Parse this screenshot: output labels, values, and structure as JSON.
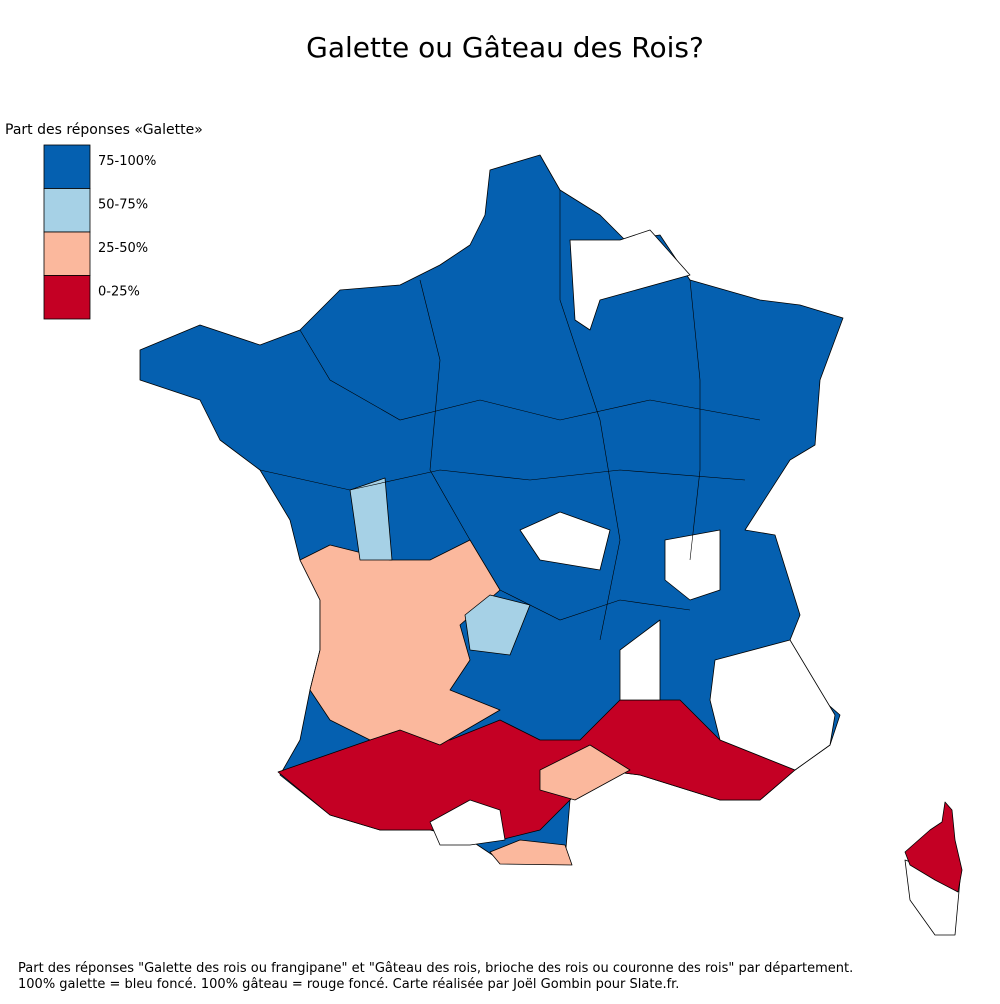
{
  "title": "Galette ou Gâteau des Rois?",
  "legend": {
    "title": "Part des réponses «Galette»",
    "items": [
      {
        "label": "75-100%",
        "color": "#0560b0"
      },
      {
        "label": "50-75%",
        "color": "#a6d1e6"
      },
      {
        "label": "25-50%",
        "color": "#fbb89d"
      },
      {
        "label": "0-25%",
        "color": "#c40024"
      }
    ]
  },
  "footer": [
    "Part des réponses \"Galette des rois ou frangipane\" et \"Gâteau des rois, brioche des rois ou couronne des rois\" par département.",
    "100% galette = bleu foncé. 100% gâteau = rouge foncé. Carte réalisée par Joël Gombin pour Slate.fr."
  ]
}
